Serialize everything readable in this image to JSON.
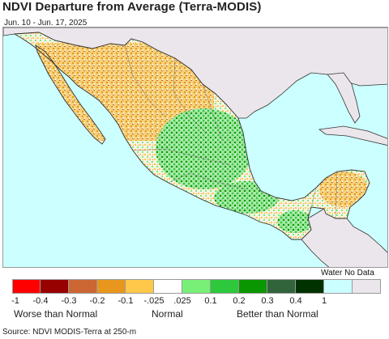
{
  "title": "NDVI Departure from Average (Terra-MODIS)",
  "date_range": "Jun. 10 - Jun. 17, 2025",
  "legend": {
    "nodata_label": "Water No Data",
    "swatches": [
      {
        "color": "#ff0000",
        "name": "legend-swatch-neg1"
      },
      {
        "color": "#990000",
        "name": "legend-swatch-neg04"
      },
      {
        "color": "#cc6633",
        "name": "legend-swatch-neg03"
      },
      {
        "color": "#e8961e",
        "name": "legend-swatch-neg02"
      },
      {
        "color": "#ffc84b",
        "name": "legend-swatch-neg01"
      },
      {
        "color": "#ffffff",
        "name": "legend-swatch-neutral"
      },
      {
        "color": "#78f078",
        "name": "legend-swatch-pos01"
      },
      {
        "color": "#2dc83c",
        "name": "legend-swatch-pos02"
      },
      {
        "color": "#0a9600",
        "name": "legend-swatch-pos03"
      },
      {
        "color": "#32643c",
        "name": "legend-swatch-pos04"
      },
      {
        "color": "#003200",
        "name": "legend-swatch-pos1"
      },
      {
        "color": "#ccffff",
        "name": "legend-swatch-water"
      },
      {
        "color": "#ebe6eb",
        "name": "legend-swatch-nodata"
      }
    ],
    "ticks": [
      "-1",
      "-0.4",
      "-0.3",
      "-0.2",
      "-0.1",
      "-.025",
      ".025",
      "0.1",
      "0.2",
      "0.3",
      "0.4",
      "1"
    ],
    "categories": {
      "worse": "Worse than Normal",
      "normal": "Normal",
      "better": "Better than Normal"
    }
  },
  "source": "Source: NDVI MODIS-Terra at 250-m",
  "colors": {
    "water": "#ccffff",
    "other_land": "#ebe6eb",
    "border": "#333333"
  }
}
